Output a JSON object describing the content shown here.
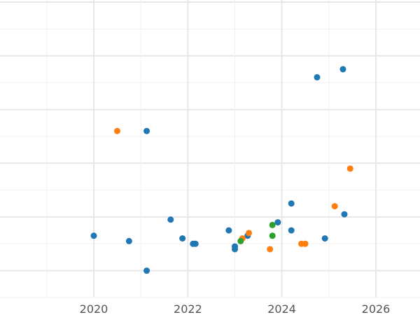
{
  "chart_data": {
    "type": "scatter",
    "title": "",
    "xlabel": "",
    "ylabel": "",
    "x_is_date": true,
    "xlim": [
      "2018-01-01",
      "2026-12-31"
    ],
    "ylim": [
      0,
      11
    ],
    "x_ticks": [
      "2020",
      "2022",
      "2024",
      "2026"
    ],
    "x_tick_dates": [
      "2020-01-01",
      "2022-01-01",
      "2024-01-01",
      "2026-01-01"
    ],
    "y_major_gridlines": [
      1,
      3,
      5,
      7,
      9,
      11
    ],
    "y_minor_gridlines": [
      0,
      2,
      4,
      6,
      8,
      10
    ],
    "x_minor_gridlines": [
      "2019-01-01",
      "2021-01-01",
      "2023-01-01",
      "2025-01-01"
    ],
    "grid": true,
    "legend": false,
    "series": [
      {
        "color": "#1f77b4",
        "points": [
          {
            "x": "2020-01-01",
            "y": 2.3
          },
          {
            "x": "2020-10-01",
            "y": 2.1
          },
          {
            "x": "2021-02-15",
            "y": 1.0
          },
          {
            "x": "2021-02-15",
            "y": 6.2
          },
          {
            "x": "2021-08-20",
            "y": 2.9
          },
          {
            "x": "2021-11-20",
            "y": 2.2
          },
          {
            "x": "2022-02-10",
            "y": 2.0
          },
          {
            "x": "2022-03-01",
            "y": 2.0
          },
          {
            "x": "2022-11-15",
            "y": 2.5
          },
          {
            "x": "2023-01-01",
            "y": 1.9
          },
          {
            "x": "2023-01-01",
            "y": 1.8
          },
          {
            "x": "2023-04-10",
            "y": 2.3
          },
          {
            "x": "2023-12-01",
            "y": 2.8
          },
          {
            "x": "2024-03-15",
            "y": 2.5
          },
          {
            "x": "2024-03-15",
            "y": 3.5
          },
          {
            "x": "2024-10-01",
            "y": 8.2
          },
          {
            "x": "2024-12-01",
            "y": 2.2
          },
          {
            "x": "2025-04-20",
            "y": 8.5
          },
          {
            "x": "2025-05-01",
            "y": 3.1
          }
        ]
      },
      {
        "color": "#ff7f0e",
        "points": [
          {
            "x": "2020-07-01",
            "y": 6.2
          },
          {
            "x": "2023-03-01",
            "y": 2.2
          },
          {
            "x": "2023-04-20",
            "y": 2.4
          },
          {
            "x": "2023-10-01",
            "y": 1.8
          },
          {
            "x": "2024-06-01",
            "y": 2.0
          },
          {
            "x": "2024-07-01",
            "y": 2.0
          },
          {
            "x": "2025-02-15",
            "y": 3.4
          },
          {
            "x": "2025-06-15",
            "y": 4.8
          }
        ]
      },
      {
        "color": "#2ca02c",
        "points": [
          {
            "x": "2023-02-15",
            "y": 2.1
          },
          {
            "x": "2023-10-20",
            "y": 2.3
          },
          {
            "x": "2023-10-20",
            "y": 2.7
          }
        ]
      }
    ]
  }
}
